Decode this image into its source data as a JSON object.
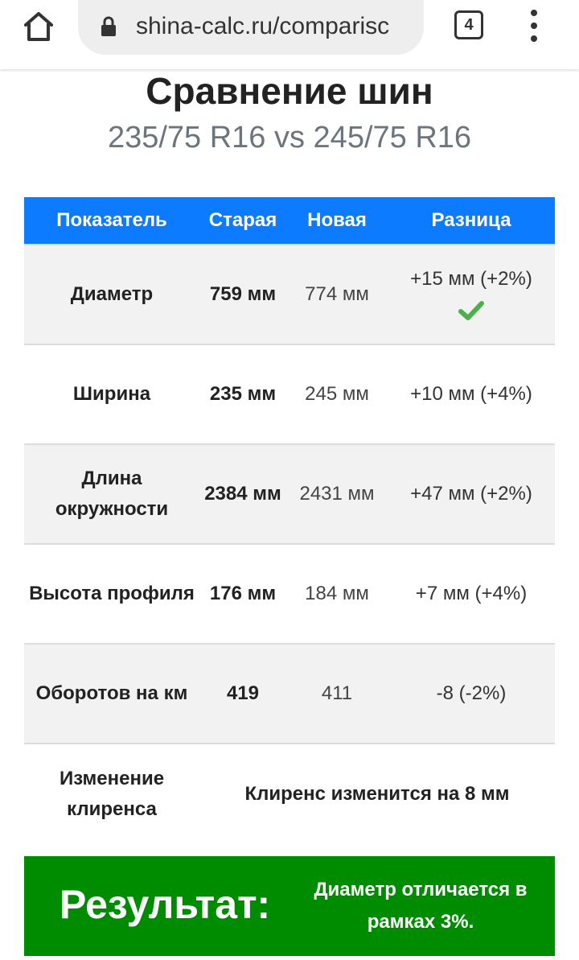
{
  "browser": {
    "url": "shina-calc.ru/comparisc",
    "tab_count": "4"
  },
  "page": {
    "title": "Сравнение шин",
    "subtitle": "235/75 R16 vs 245/75 R16"
  },
  "table": {
    "headers": [
      "Показатель",
      "Старая",
      "Новая",
      "Разница"
    ],
    "rows": [
      {
        "label": "Диаметр",
        "old": "759 мм",
        "new": "774 мм",
        "diff": "+15 мм (+2%)",
        "check": true
      },
      {
        "label": "Ширина",
        "old": "235 мм",
        "new": "245 мм",
        "diff": "+10 мм (+4%)"
      },
      {
        "label": "Длина окружности",
        "old": "2384 мм",
        "new": "2431 мм",
        "diff": "+47 мм (+2%)"
      },
      {
        "label": "Высота профиля",
        "old": "176 мм",
        "new": "184 мм",
        "diff": "+7 мм (+4%)"
      },
      {
        "label": "Оборотов на км",
        "old": "419",
        "new": "411",
        "diff": "-8 (-2%)"
      }
    ],
    "clearance": {
      "label": "Изменение клиренса",
      "value": "Клиренс изменится на 8 мм"
    }
  },
  "result": {
    "title": "Результат:",
    "text": "Диаметр отличается в рамках 3%."
  },
  "colors": {
    "header_blue": "#0d7bff",
    "result_green": "#008c00",
    "check_green": "#4caf50"
  },
  "icons": [
    "home-icon",
    "lock-icon",
    "tabs-icon",
    "more-menu-icon",
    "check-icon"
  ]
}
